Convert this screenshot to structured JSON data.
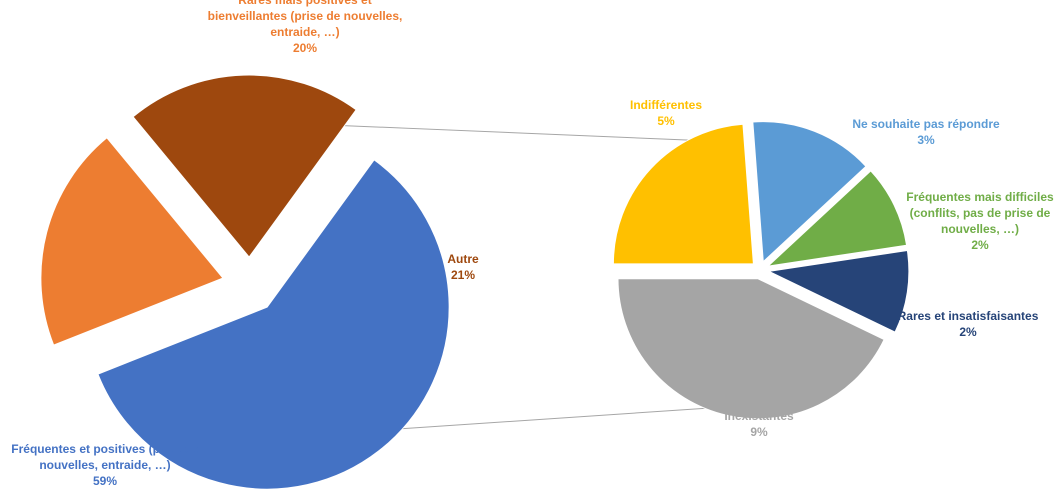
{
  "chart_data": {
    "type": "bar-of-pie",
    "title": "",
    "main_pie": {
      "slices": [
        {
          "label": [
            "Fréquentes et positives (prise de",
            "nouvelles, entraide, …)"
          ],
          "value": 59,
          "value_label": "59%",
          "color": "#4472C4"
        },
        {
          "label": [
            "Rares mais positives et",
            "bienveillantes (prise de nouvelles,",
            "entraide, …)"
          ],
          "value": 20,
          "value_label": "20%",
          "color": "#ED7D31"
        },
        {
          "label": [
            "Autre"
          ],
          "value": 21,
          "value_label": "21%",
          "color": "#9E480E"
        }
      ]
    },
    "secondary_pie": {
      "breakdown_of": "Autre",
      "slices": [
        {
          "label": [
            "Indifférentes"
          ],
          "value": 5,
          "value_label": "5%",
          "color": "#FFC000"
        },
        {
          "label": [
            "Ne souhaite pas répondre"
          ],
          "value": 3,
          "value_label": "3%",
          "color": "#5B9BD5"
        },
        {
          "label": [
            "Fréquentes mais difficiles",
            "(conflits, pas de prise de",
            "nouvelles, …)"
          ],
          "value": 2,
          "value_label": "2%",
          "color": "#70AD47"
        },
        {
          "label": [
            "Rares et insatisfaisantes"
          ],
          "value": 2,
          "value_label": "2%",
          "color": "#264478"
        },
        {
          "label": [
            "Inexistantes"
          ],
          "value": 9,
          "value_label": "9%",
          "color": "#A5A5A5"
        }
      ]
    }
  }
}
